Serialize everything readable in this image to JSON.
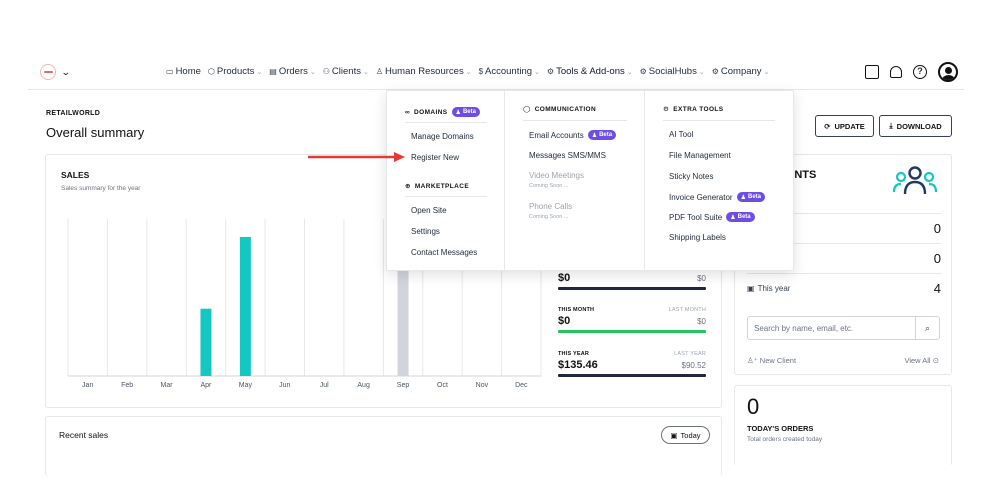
{
  "nav": {
    "items": [
      {
        "label": "Home",
        "icon": "monitor-icon"
      },
      {
        "label": "Products",
        "icon": "box-icon"
      },
      {
        "label": "Orders",
        "icon": "receipt-icon"
      },
      {
        "label": "Clients",
        "icon": "users-icon"
      },
      {
        "label": "Human Resources",
        "icon": "person-icon"
      },
      {
        "label": "Accounting",
        "icon": "dollar-icon"
      },
      {
        "label": "Tools & Add-ons",
        "icon": "tools-icon"
      },
      {
        "label": "SocialHubs",
        "icon": "hub-icon"
      },
      {
        "label": "Company",
        "icon": "building-icon"
      }
    ]
  },
  "header": {
    "company": "RETAILWORLD",
    "title": "Overall summary",
    "update_label": "UPDATE",
    "download_label": "DOWNLOAD"
  },
  "menu": {
    "domains_head": "DOMAINS",
    "domains_items": [
      "Manage Domains",
      "Register New"
    ],
    "marketplace_head": "MARKETPLACE",
    "marketplace_items": [
      "Open Site",
      "Settings",
      "Contact Messages"
    ],
    "communication_head": "COMMUNICATION",
    "email_accounts": "Email Accounts",
    "sms": "Messages SMS/MMS",
    "video": "Video Meetings",
    "phone": "Phone Calls",
    "coming_soon": "Coming Soon ...",
    "extra_head": "EXTRA TOOLS",
    "extra_items": [
      "AI Tool",
      "File Management",
      "Sticky Notes",
      "Invoice Generator",
      "PDF Tool Suite",
      "Shipping Labels"
    ],
    "beta_label": "Beta"
  },
  "sales": {
    "title": "SALES",
    "subtitle": "Sales summary for the year"
  },
  "chart_data": {
    "type": "bar",
    "categories": [
      "Jan",
      "Feb",
      "Mar",
      "Apr",
      "May",
      "Jun",
      "Jul",
      "Aug",
      "Sep",
      "Oct",
      "Nov",
      "Dec"
    ],
    "values": [
      0,
      0,
      0,
      30,
      62,
      0,
      0,
      0,
      62,
      0,
      0,
      0
    ],
    "colors": [
      "#14c7c1",
      "#14c7c1",
      "#14c7c1",
      "#14c7c1",
      "#14c7c1",
      "#14c7c1",
      "#14c7c1",
      "#14c7c1",
      "#d1d5db",
      "#14c7c1",
      "#14c7c1",
      "#14c7c1"
    ],
    "ylim": [
      0,
      70
    ],
    "grid": true
  },
  "stats": {
    "today_value": "$0",
    "today_prev": "$0",
    "month_label": "THIS MONTH",
    "month_prev_label": "LAST MONTH",
    "month_value": "$0",
    "month_prev": "$0",
    "year_label": "THIS YEAR",
    "year_prev_label": "LAST YEAR",
    "year_value": "$135.46",
    "year_prev": "$90.52",
    "bar_colors": [
      "#1e293b",
      "#22c55e",
      "#1e293b"
    ]
  },
  "clients": {
    "title_fragment": "ENTS",
    "subtitle_fragment": "y",
    "rows": [
      {
        "label": "t",
        "value": "0"
      },
      {
        "label": "th",
        "value": "0"
      },
      {
        "label": "This year",
        "value": "4"
      }
    ],
    "search_placeholder": "Search by name, email, etc.",
    "new_client": "New Client",
    "view_all": "View All"
  },
  "orders": {
    "count": "0",
    "label": "TODAY'S ORDERS",
    "sub": "Total orders created today"
  },
  "recent": {
    "title": "Recent sales",
    "today_label": "Today"
  },
  "colors": {
    "accent": "#6d4de6",
    "bar": "#14c7c1",
    "arrow": "#e53935"
  }
}
